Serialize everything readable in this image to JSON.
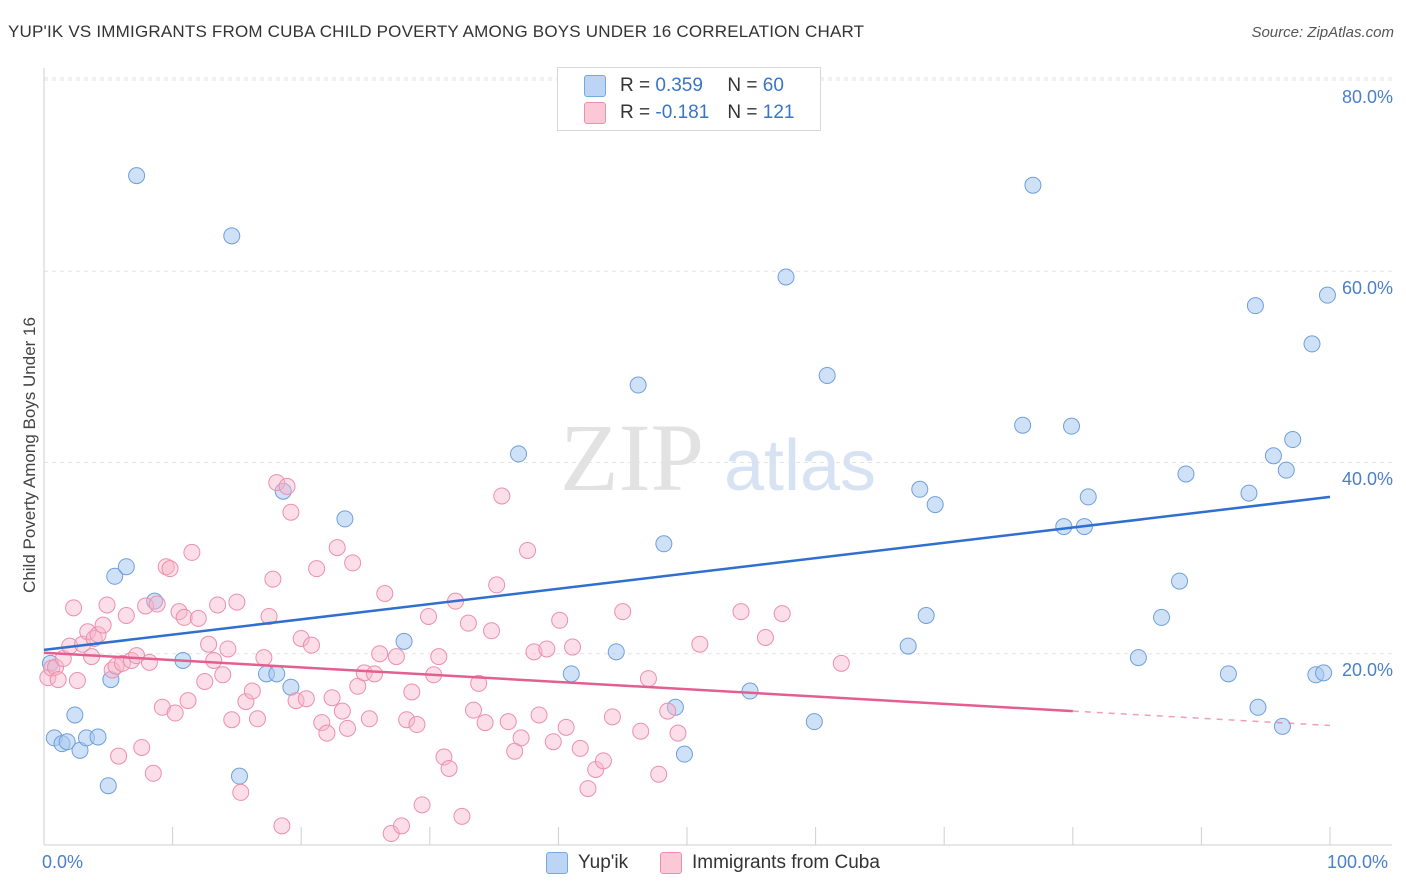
{
  "header": {
    "title": "YUP'IK VS IMMIGRANTS FROM CUBA CHILD POVERTY AMONG BOYS UNDER 16 CORRELATION CHART",
    "source": "Source: ZipAtlas.com"
  },
  "watermark": {
    "zip": "ZIP",
    "atlas": "atlas"
  },
  "legend": {
    "r_label": "R =",
    "n_label": "N =",
    "items": [
      {
        "name": "Yup'ik",
        "r": "0.359",
        "n": "60",
        "color": "#a8c8f0",
        "stroke": "#7aa7e0"
      },
      {
        "name": "Immigrants from Cuba",
        "r": "-0.181",
        "n": "121",
        "color": "#f7b6c9",
        "stroke": "#ee90ad"
      }
    ]
  },
  "chart_data": {
    "type": "scatter",
    "ylabel": "Child Poverty Among Boys Under 16",
    "xlim": [
      0,
      100
    ],
    "ylim": [
      0,
      80
    ],
    "x_tick_labels": [
      "0.0%",
      "100.0%"
    ],
    "y_ticks": [
      20,
      40,
      60,
      80
    ],
    "y_tick_labels": [
      "20.0%",
      "40.0%",
      "60.0%",
      "80.0%"
    ],
    "grid": true,
    "legend_position": "top-center",
    "series": [
      {
        "name": "Yup'ik",
        "color": "#5a8fd8",
        "line_color": "#2f6fcf",
        "trend": {
          "x": [
            0,
            100
          ],
          "y": [
            20.4,
            36.4
          ]
        },
        "points": [
          [
            0.5,
            19
          ],
          [
            0.8,
            11.2
          ],
          [
            1.4,
            10.6
          ],
          [
            1.8,
            10.8
          ],
          [
            2.4,
            13.6
          ],
          [
            2.8,
            9.9
          ],
          [
            3.3,
            11.2
          ],
          [
            4.2,
            11.3
          ],
          [
            5.0,
            6.2
          ],
          [
            5.2,
            17.3
          ],
          [
            5.5,
            28.1
          ],
          [
            6.4,
            29.1
          ],
          [
            7.2,
            70.0
          ],
          [
            8.6,
            25.5
          ],
          [
            10.8,
            19.3
          ],
          [
            14.6,
            63.7
          ],
          [
            15.2,
            7.2
          ],
          [
            17.3,
            17.9
          ],
          [
            18.1,
            17.9
          ],
          [
            18.6,
            37.0
          ],
          [
            19.2,
            16.5
          ],
          [
            23.4,
            34.1
          ],
          [
            28.0,
            21.3
          ],
          [
            36.9,
            40.9
          ],
          [
            41.0,
            17.9
          ],
          [
            44.5,
            20.2
          ],
          [
            46.2,
            48.1
          ],
          [
            48.2,
            31.5
          ],
          [
            49.1,
            14.4
          ],
          [
            49.8,
            9.5
          ],
          [
            54.9,
            16.1
          ],
          [
            57.7,
            59.4
          ],
          [
            59.9,
            12.9
          ],
          [
            60.9,
            49.1
          ],
          [
            67.2,
            20.8
          ],
          [
            68.1,
            37.2
          ],
          [
            68.6,
            24.0
          ],
          [
            69.3,
            35.6
          ],
          [
            76.1,
            43.9
          ],
          [
            76.9,
            69.0
          ],
          [
            79.3,
            33.3
          ],
          [
            79.9,
            43.8
          ],
          [
            80.9,
            33.3
          ],
          [
            81.2,
            36.4
          ],
          [
            85.1,
            19.6
          ],
          [
            86.9,
            23.8
          ],
          [
            88.3,
            27.6
          ],
          [
            88.8,
            38.8
          ],
          [
            92.1,
            17.9
          ],
          [
            93.7,
            36.8
          ],
          [
            94.2,
            56.4
          ],
          [
            94.4,
            14.4
          ],
          [
            95.6,
            40.7
          ],
          [
            96.3,
            12.4
          ],
          [
            96.6,
            39.2
          ],
          [
            97.1,
            42.4
          ],
          [
            98.6,
            52.4
          ],
          [
            98.9,
            17.8
          ],
          [
            99.5,
            18.0
          ],
          [
            99.8,
            57.5
          ]
        ]
      },
      {
        "name": "Immigrants from Cuba",
        "color": "#ee8aab",
        "line_color": "#e35f8f",
        "trend": {
          "x": [
            0,
            80
          ],
          "y": [
            20.1,
            14.0
          ]
        },
        "trend_dashed": {
          "x": [
            80,
            100
          ],
          "y": [
            14.0,
            12.5
          ]
        },
        "points": [
          [
            0.3,
            17.5
          ],
          [
            0.6,
            18.5
          ],
          [
            0.9,
            18.6
          ],
          [
            1.1,
            17.3
          ],
          [
            1.5,
            19.5
          ],
          [
            2.0,
            20.8
          ],
          [
            2.3,
            24.8
          ],
          [
            2.6,
            17.2
          ],
          [
            3.0,
            21.0
          ],
          [
            3.4,
            22.3
          ],
          [
            3.7,
            19.7
          ],
          [
            3.9,
            21.6
          ],
          [
            4.2,
            22.0
          ],
          [
            4.6,
            23.0
          ],
          [
            4.9,
            25.1
          ],
          [
            5.3,
            18.3
          ],
          [
            5.6,
            18.7
          ],
          [
            5.8,
            9.3
          ],
          [
            6.1,
            19.0
          ],
          [
            6.4,
            24.0
          ],
          [
            6.8,
            19.3
          ],
          [
            7.2,
            19.8
          ],
          [
            7.6,
            10.2
          ],
          [
            7.9,
            25.0
          ],
          [
            8.2,
            19.1
          ],
          [
            8.5,
            7.5
          ],
          [
            8.8,
            25.2
          ],
          [
            9.2,
            14.4
          ],
          [
            9.5,
            29.1
          ],
          [
            9.8,
            28.9
          ],
          [
            10.2,
            13.8
          ],
          [
            10.5,
            24.4
          ],
          [
            10.9,
            23.8
          ],
          [
            11.2,
            15.1
          ],
          [
            11.5,
            30.6
          ],
          [
            12.0,
            23.7
          ],
          [
            12.5,
            17.1
          ],
          [
            12.8,
            21.0
          ],
          [
            13.2,
            19.3
          ],
          [
            13.5,
            25.1
          ],
          [
            13.9,
            17.8
          ],
          [
            14.3,
            20.5
          ],
          [
            14.6,
            13.1
          ],
          [
            15.0,
            25.4
          ],
          [
            15.3,
            5.5
          ],
          [
            15.7,
            15.0
          ],
          [
            16.2,
            16.1
          ],
          [
            16.6,
            13.2
          ],
          [
            17.1,
            19.6
          ],
          [
            17.5,
            23.9
          ],
          [
            17.8,
            27.8
          ],
          [
            18.1,
            37.9
          ],
          [
            18.5,
            2.0
          ],
          [
            18.9,
            37.5
          ],
          [
            19.2,
            34.8
          ],
          [
            19.6,
            15.1
          ],
          [
            20.0,
            21.6
          ],
          [
            20.4,
            15.3
          ],
          [
            20.8,
            20.9
          ],
          [
            21.2,
            28.9
          ],
          [
            21.6,
            12.8
          ],
          [
            22.0,
            11.7
          ],
          [
            22.4,
            15.4
          ],
          [
            22.8,
            31.1
          ],
          [
            23.2,
            14.0
          ],
          [
            23.6,
            12.2
          ],
          [
            24.0,
            29.5
          ],
          [
            24.4,
            16.6
          ],
          [
            24.9,
            18.0
          ],
          [
            25.3,
            13.2
          ],
          [
            25.7,
            17.9
          ],
          [
            26.1,
            20.0
          ],
          [
            26.5,
            26.3
          ],
          [
            27.0,
            1.2
          ],
          [
            27.4,
            19.7
          ],
          [
            27.8,
            2.0
          ],
          [
            28.2,
            13.1
          ],
          [
            28.6,
            16.0
          ],
          [
            29.0,
            12.6
          ],
          [
            29.4,
            4.2
          ],
          [
            29.9,
            23.9
          ],
          [
            30.3,
            17.8
          ],
          [
            30.7,
            19.7
          ],
          [
            31.1,
            9.2
          ],
          [
            31.5,
            8.0
          ],
          [
            32.0,
            25.5
          ],
          [
            32.5,
            3.0
          ],
          [
            33.0,
            23.2
          ],
          [
            33.4,
            14.1
          ],
          [
            33.8,
            16.9
          ],
          [
            34.3,
            12.8
          ],
          [
            34.8,
            22.4
          ],
          [
            35.2,
            27.2
          ],
          [
            35.6,
            36.5
          ],
          [
            36.1,
            12.9
          ],
          [
            36.6,
            9.8
          ],
          [
            37.1,
            11.2
          ],
          [
            37.6,
            30.8
          ],
          [
            38.1,
            20.2
          ],
          [
            38.5,
            13.6
          ],
          [
            39.1,
            20.5
          ],
          [
            39.6,
            10.8
          ],
          [
            40.1,
            23.5
          ],
          [
            40.6,
            12.3
          ],
          [
            41.1,
            20.7
          ],
          [
            41.7,
            10.1
          ],
          [
            42.3,
            5.9
          ],
          [
            42.9,
            7.9
          ],
          [
            43.5,
            8.8
          ],
          [
            44.2,
            13.4
          ],
          [
            45.0,
            24.4
          ],
          [
            46.4,
            11.9
          ],
          [
            47.0,
            17.4
          ],
          [
            47.8,
            7.4
          ],
          [
            48.5,
            14.0
          ],
          [
            49.3,
            11.7
          ],
          [
            51.0,
            21.0
          ],
          [
            54.2,
            24.4
          ],
          [
            56.1,
            21.7
          ],
          [
            57.4,
            24.2
          ],
          [
            62.0,
            19.0
          ]
        ]
      }
    ]
  }
}
